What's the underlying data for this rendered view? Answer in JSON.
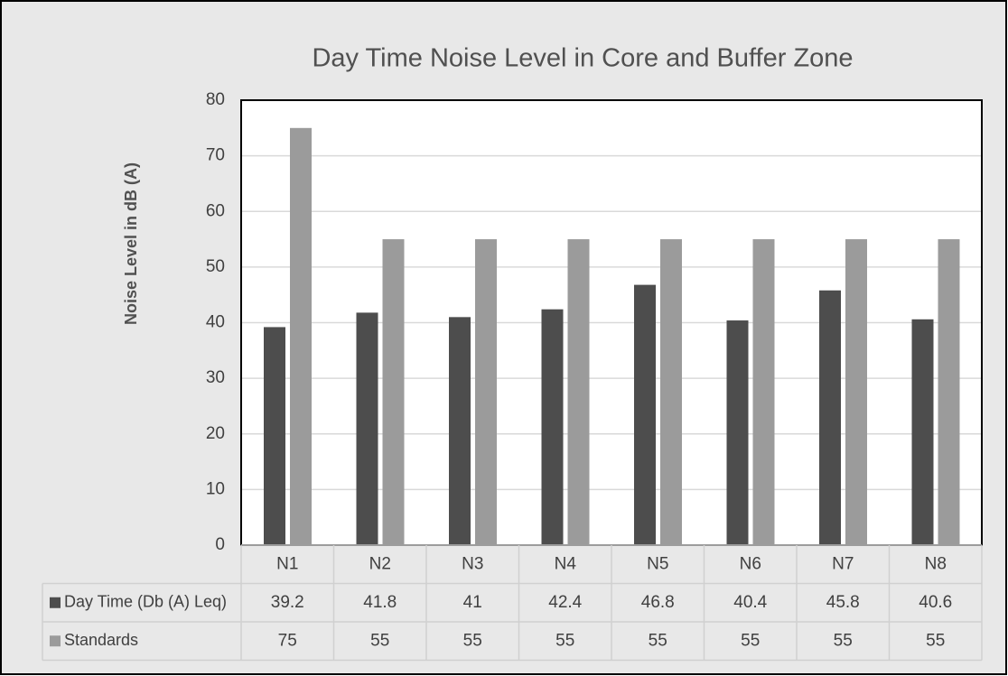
{
  "chart_data": {
    "type": "bar",
    "title": "Day Time Noise Level in Core and Buffer Zone",
    "y_label": "Noise Level in dB (A)",
    "categories": [
      "N1",
      "N2",
      "N3",
      "N4",
      "N5",
      "N6",
      "N7",
      "N8"
    ],
    "series": [
      {
        "name": "Day Time (Db (A) Leq)",
        "color": "#4d4d4d",
        "values": [
          39.2,
          41.8,
          41,
          42.4,
          46.8,
          40.4,
          45.8,
          40.6
        ]
      },
      {
        "name": "Standards",
        "color": "#9b9b9b",
        "values": [
          75,
          55,
          55,
          55,
          55,
          55,
          55,
          55
        ]
      }
    ],
    "ylim": [
      0,
      80
    ],
    "yticks": [
      0,
      10,
      20,
      30,
      40,
      50,
      60,
      70,
      80
    ],
    "grid": true,
    "data_table": true
  }
}
